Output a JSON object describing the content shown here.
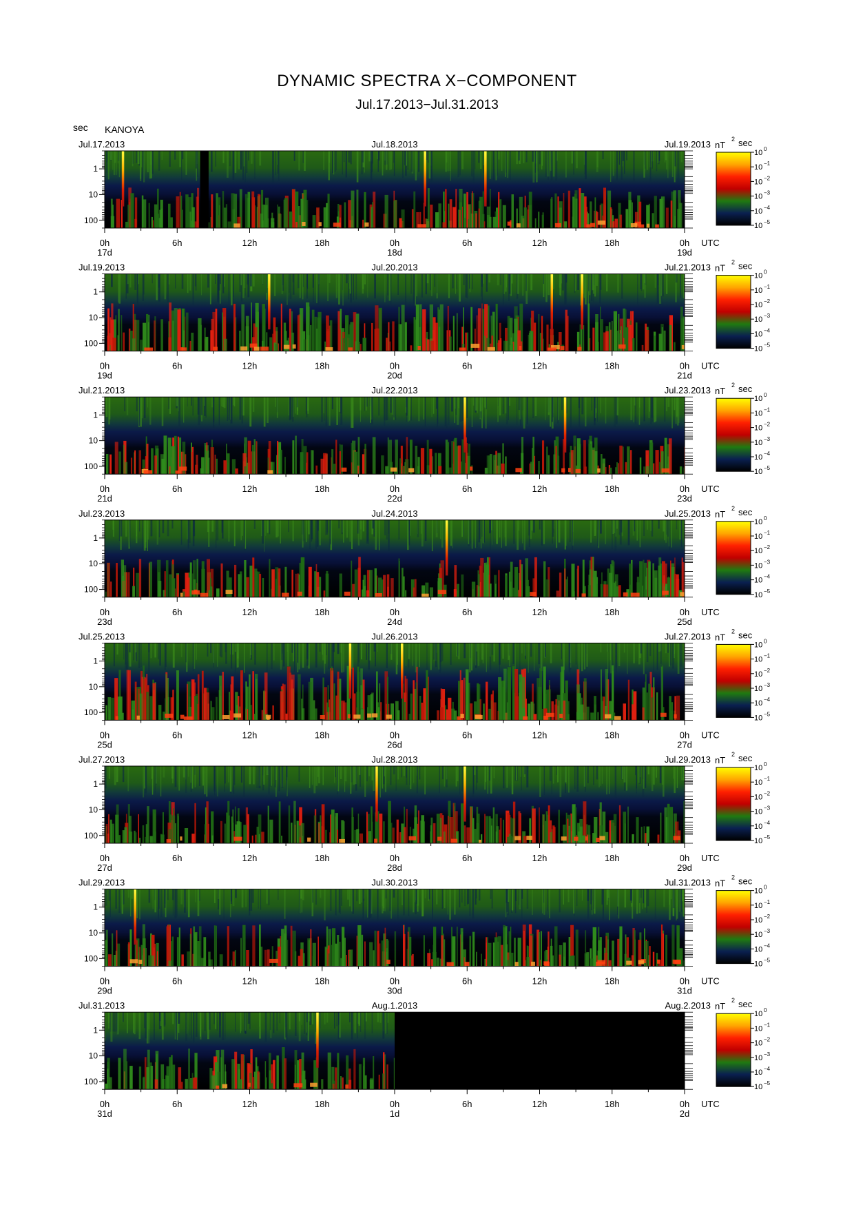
{
  "title": "DYNAMIC SPECTRA X−COMPONENT",
  "date_range": "Jul.17.2013−Jul.31.2013",
  "period_unit_label": "sec",
  "station": "KANOYA",
  "colorbar": {
    "unit_base": "nT",
    "unit_exp": "2",
    "unit_suffix": "sec",
    "tick_base": "10",
    "tick_exponents": [
      "0",
      "−1",
      "−2",
      "−3",
      "−4",
      "−5"
    ],
    "colors": [
      "#ffff00",
      "#ffa500",
      "#ff2000",
      "#c00000",
      "#207a10",
      "#0a2050",
      "#000000"
    ]
  },
  "axis": {
    "y_tick_labels": [
      "1",
      "10",
      "100"
    ],
    "x_tick_labels": [
      "0h",
      "6h",
      "12h",
      "18h",
      "0h",
      "6h",
      "12h",
      "18h",
      "0h"
    ],
    "x_unit": "UTC"
  },
  "chart_data": {
    "type": "heatmap",
    "description_of_axes": "x: time UTC over two days per panel; y: period in seconds (log scale, 1 to 100, increasing downward); color: power spectral density nT^2 sec",
    "x_range_hours": [
      0,
      48
    ],
    "y_scale": "log",
    "y_range_sec": [
      0.2,
      200
    ],
    "color_range": [
      "10^-5",
      "10^0"
    ],
    "panels": [
      {
        "left_date": "Jul.17.2013",
        "mid_date": "Jul.18.2013",
        "right_date": "Jul.19.2013",
        "day_labels": [
          "17d",
          "18d",
          "19d"
        ],
        "spikes_h": [
          1.5,
          26.5,
          31.5
        ],
        "data_gap_h": [
          [
            7.9,
            8.6
          ]
        ],
        "no_data_after_h": null,
        "activity": 0.55
      },
      {
        "left_date": "Jul.19.2013",
        "mid_date": "Jul.20.2013",
        "right_date": "Jul.21.2013",
        "day_labels": [
          "19d",
          "20d",
          "21d"
        ],
        "spikes_h": [
          13.6,
          37.0,
          39.5
        ],
        "data_gap_h": [],
        "no_data_after_h": null,
        "activity": 0.75
      },
      {
        "left_date": "Jul.21.2013",
        "mid_date": "Jul.22.2013",
        "right_date": "Jul.23.2013",
        "day_labels": [
          "21d",
          "22d",
          "23d"
        ],
        "spikes_h": [
          29.8,
          38.1
        ],
        "data_gap_h": [],
        "no_data_after_h": null,
        "activity": 0.5
      },
      {
        "left_date": "Jul.23.2013",
        "mid_date": "Jul.24.2013",
        "right_date": "Jul.25.2013",
        "day_labels": [
          "23d",
          "24d",
          "25d"
        ],
        "spikes_h": [
          28.3
        ],
        "data_gap_h": [],
        "no_data_after_h": null,
        "activity": 0.55
      },
      {
        "left_date": "Jul.25.2013",
        "mid_date": "Jul.26.2013",
        "right_date": "Jul.27.2013",
        "day_labels": [
          "25d",
          "26d",
          "27d"
        ],
        "spikes_h": [
          20.3,
          24.6
        ],
        "data_gap_h": [],
        "no_data_after_h": null,
        "activity": 0.9
      },
      {
        "left_date": "Jul.27.2013",
        "mid_date": "Jul.28.2013",
        "right_date": "Jul.29.2013",
        "day_labels": [
          "27d",
          "28d",
          "29d"
        ],
        "spikes_h": [
          22.5,
          29.8
        ],
        "data_gap_h": [],
        "no_data_after_h": null,
        "activity": 0.6
      },
      {
        "left_date": "Jul.29.2013",
        "mid_date": "Jul.30.2013",
        "right_date": "Jul.31.2013",
        "day_labels": [
          "29d",
          "30d",
          "31d"
        ],
        "spikes_h": [
          2.5
        ],
        "data_gap_h": [],
        "no_data_after_h": null,
        "activity": 0.6
      },
      {
        "left_date": "Jul.31.2013",
        "mid_date": "Aug.1.2013",
        "right_date": "Aug.2.2013",
        "day_labels": [
          "31d",
          "1d",
          "2d"
        ],
        "spikes_h": [
          17.6
        ],
        "data_gap_h": [],
        "no_data_after_h": 24,
        "activity": 0.6
      }
    ]
  }
}
